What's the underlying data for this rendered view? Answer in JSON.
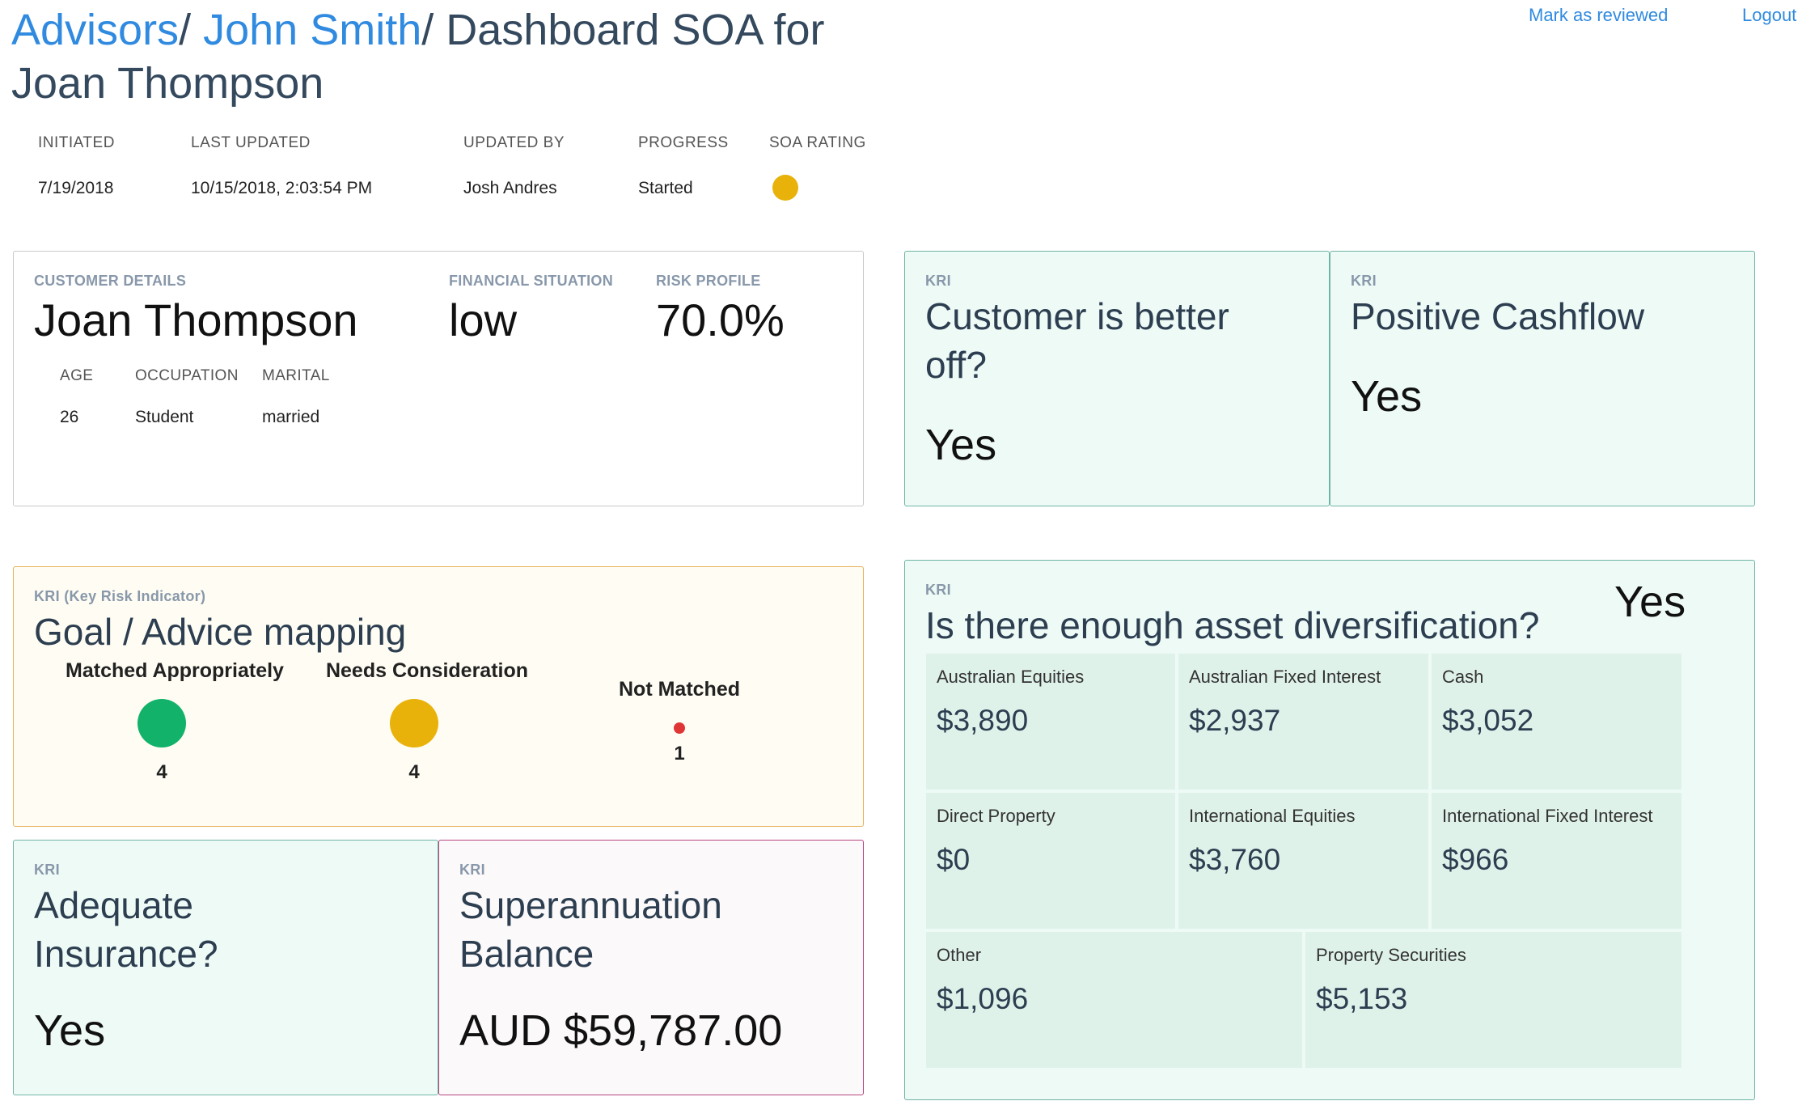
{
  "breadcrumb": {
    "advisors": "Advisors",
    "advisor_name": "John Smith",
    "sep1": "/",
    "sep2": "/",
    "current": "Dashboard SOA for Joan Thompson"
  },
  "top_links": {
    "mark_reviewed": "Mark as reviewed",
    "logout": "Logout"
  },
  "meta": {
    "labels": [
      "INITIATED",
      "LAST UPDATED",
      "UPDATED BY",
      "PROGRESS",
      "SOA RATING"
    ],
    "initiated": "7/19/2018",
    "last_updated": "10/15/2018, 2:03:54 PM",
    "updated_by": "Josh Andres",
    "progress": "Started",
    "soa_rating_color": "#e8b20a"
  },
  "customer": {
    "details_label": "CUSTOMER DETAILS",
    "name": "Joan Thompson",
    "financial_label": "FINANCIAL SITUATION",
    "financial_value": "low",
    "risk_label": "RISK PROFILE",
    "risk_value": "70.0%",
    "age_label": "AGE",
    "age": "26",
    "occupation_label": "OCCUPATION",
    "occupation": "Student",
    "marital_label": "MARITAL",
    "marital": "married"
  },
  "kri_better_off": {
    "label": "KRI",
    "title": "Customer is better off?",
    "answer": "Yes"
  },
  "kri_cashflow": {
    "label": "KRI",
    "title": "Positive Cashflow",
    "answer": "Yes"
  },
  "goal_mapping": {
    "label": "KRI (Key Risk Indicator)",
    "title": "Goal / Advice mapping",
    "matched_label": "Matched Appropriately",
    "matched_count": "4",
    "matched_color": "#13b26b",
    "consider_label": "Needs Consideration",
    "consider_count": "4",
    "consider_color": "#e8b20a",
    "not_matched_label": "Not Matched",
    "not_matched_count": "1",
    "not_matched_color": "#e03535"
  },
  "kri_insurance": {
    "label": "KRI",
    "title": "Adequate Insurance?",
    "answer": "Yes"
  },
  "kri_super": {
    "label": "KRI",
    "title": "Superannuation Balance",
    "answer": "AUD $59,787.00"
  },
  "diversification": {
    "label": "KRI",
    "title": "Is there enough asset diversification?",
    "answer": "Yes",
    "assets": [
      {
        "name": "Australian Equities",
        "value": "$3,890"
      },
      {
        "name": "Australian Fixed Interest",
        "value": "$2,937"
      },
      {
        "name": "Cash",
        "value": "$3,052"
      },
      {
        "name": "Direct Property",
        "value": "$0"
      },
      {
        "name": "International Equities",
        "value": "$3,760"
      },
      {
        "name": "International Fixed Interest",
        "value": "$966"
      },
      {
        "name": "Other",
        "value": "$1,096"
      },
      {
        "name": "Property Securities",
        "value": "$5,153"
      }
    ]
  }
}
